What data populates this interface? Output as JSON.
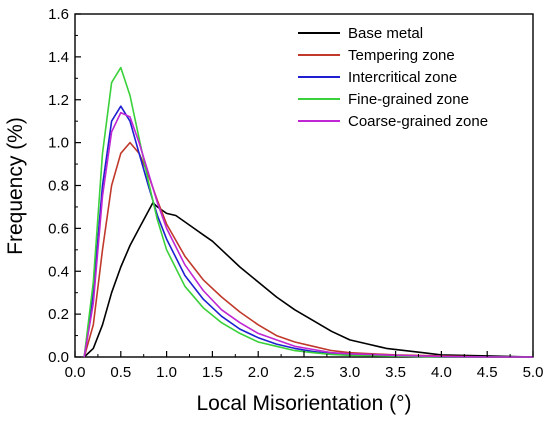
{
  "chart_data": {
    "type": "line",
    "xlabel": "Local Misorientation (°)",
    "ylabel": "Frequency (%)",
    "xlim": [
      0,
      5
    ],
    "ylim": [
      0,
      1.6
    ],
    "xticks": [
      "0.0",
      "0.5",
      "1.0",
      "1.5",
      "2.0",
      "2.5",
      "3.0",
      "3.5",
      "4.0",
      "4.5",
      "5.0"
    ],
    "yticks": [
      "0.0",
      "0.2",
      "0.4",
      "0.6",
      "0.8",
      "1.0",
      "1.2",
      "1.4",
      "1.6"
    ],
    "grid": false,
    "legend_position": "top-right",
    "series": [
      {
        "name": "Base metal",
        "color": "#000000",
        "x": [
          0.1,
          0.2,
          0.3,
          0.4,
          0.5,
          0.6,
          0.7,
          0.8,
          0.85,
          0.9,
          1.0,
          1.1,
          1.2,
          1.3,
          1.4,
          1.5,
          1.6,
          1.8,
          2.0,
          2.2,
          2.4,
          2.6,
          2.8,
          3.0,
          3.2,
          3.4,
          3.6,
          3.8,
          4.0,
          4.5,
          5.0
        ],
        "y": [
          0.0,
          0.04,
          0.15,
          0.3,
          0.42,
          0.52,
          0.6,
          0.68,
          0.72,
          0.7,
          0.67,
          0.66,
          0.63,
          0.6,
          0.57,
          0.54,
          0.5,
          0.42,
          0.35,
          0.28,
          0.22,
          0.17,
          0.12,
          0.08,
          0.06,
          0.04,
          0.03,
          0.02,
          0.01,
          0.005,
          0.0
        ]
      },
      {
        "name": "Tempering zone",
        "color": "#c0392b",
        "x": [
          0.1,
          0.2,
          0.3,
          0.4,
          0.5,
          0.6,
          0.7,
          0.8,
          0.9,
          1.0,
          1.2,
          1.4,
          1.6,
          1.8,
          2.0,
          2.2,
          2.4,
          2.6,
          2.8,
          3.0,
          3.5,
          4.0,
          4.5,
          5.0
        ],
        "y": [
          0.0,
          0.15,
          0.5,
          0.8,
          0.95,
          1.0,
          0.95,
          0.85,
          0.73,
          0.62,
          0.47,
          0.36,
          0.28,
          0.21,
          0.15,
          0.1,
          0.07,
          0.05,
          0.03,
          0.02,
          0.01,
          0.005,
          0.0,
          0.0
        ]
      },
      {
        "name": "Intercritical zone",
        "color": "#1f1fd1",
        "x": [
          0.1,
          0.2,
          0.3,
          0.4,
          0.5,
          0.6,
          0.7,
          0.8,
          0.9,
          1.0,
          1.2,
          1.4,
          1.6,
          1.8,
          2.0,
          2.2,
          2.4,
          2.6,
          2.8,
          3.0,
          3.5,
          4.0,
          4.5,
          5.0
        ],
        "y": [
          0.0,
          0.3,
          0.8,
          1.1,
          1.17,
          1.1,
          0.95,
          0.8,
          0.66,
          0.55,
          0.38,
          0.27,
          0.19,
          0.13,
          0.09,
          0.06,
          0.04,
          0.025,
          0.015,
          0.01,
          0.005,
          0.0,
          0.0,
          0.0
        ]
      },
      {
        "name": "Fine-grained zone",
        "color": "#3ad13a",
        "x": [
          0.1,
          0.2,
          0.3,
          0.4,
          0.5,
          0.6,
          0.7,
          0.8,
          0.9,
          1.0,
          1.2,
          1.4,
          1.6,
          1.8,
          2.0,
          2.2,
          2.4,
          2.6,
          2.8,
          3.0,
          3.5,
          4.0,
          4.5,
          5.0
        ],
        "y": [
          0.0,
          0.35,
          0.95,
          1.28,
          1.35,
          1.22,
          1.02,
          0.82,
          0.64,
          0.5,
          0.33,
          0.23,
          0.16,
          0.11,
          0.07,
          0.05,
          0.03,
          0.02,
          0.012,
          0.008,
          0.004,
          0.0,
          0.0,
          0.0
        ]
      },
      {
        "name": "Coarse-grained zone",
        "color": "#c026d3",
        "x": [
          0.1,
          0.2,
          0.3,
          0.4,
          0.5,
          0.6,
          0.7,
          0.8,
          0.9,
          1.0,
          1.2,
          1.4,
          1.6,
          1.8,
          2.0,
          2.2,
          2.4,
          2.6,
          2.8,
          3.0,
          3.5,
          4.0,
          4.5,
          5.0
        ],
        "y": [
          0.0,
          0.25,
          0.75,
          1.05,
          1.14,
          1.12,
          1.0,
          0.86,
          0.72,
          0.6,
          0.43,
          0.31,
          0.22,
          0.16,
          0.11,
          0.08,
          0.05,
          0.035,
          0.02,
          0.015,
          0.008,
          0.003,
          0.0,
          0.0
        ]
      }
    ]
  }
}
